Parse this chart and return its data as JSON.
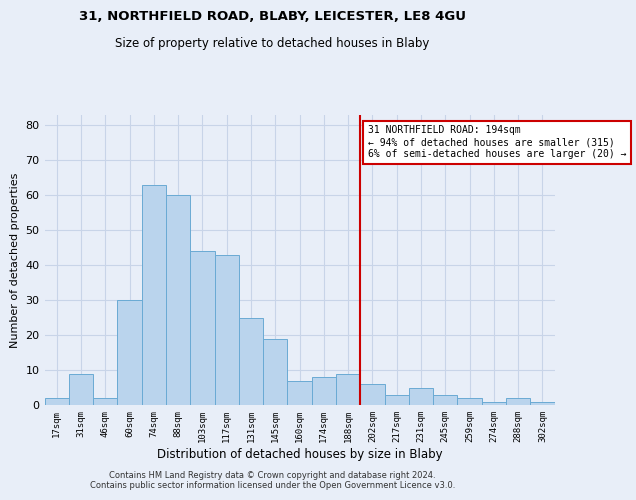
{
  "title1": "31, NORTHFIELD ROAD, BLABY, LEICESTER, LE8 4GU",
  "title2": "Size of property relative to detached houses in Blaby",
  "xlabel": "Distribution of detached houses by size in Blaby",
  "ylabel": "Number of detached properties",
  "footnote": "Contains HM Land Registry data © Crown copyright and database right 2024.\nContains public sector information licensed under the Open Government Licence v3.0.",
  "bin_labels": [
    "17sqm",
    "31sqm",
    "46sqm",
    "60sqm",
    "74sqm",
    "88sqm",
    "103sqm",
    "117sqm",
    "131sqm",
    "145sqm",
    "160sqm",
    "174sqm",
    "188sqm",
    "202sqm",
    "217sqm",
    "231sqm",
    "245sqm",
    "259sqm",
    "274sqm",
    "288sqm",
    "302sqm"
  ],
  "bar_values": [
    2,
    9,
    2,
    30,
    63,
    60,
    44,
    43,
    25,
    19,
    7,
    8,
    9,
    6,
    3,
    5,
    3,
    2,
    1,
    2,
    1
  ],
  "bar_color": "#bad4ed",
  "bar_edge_color": "#6aaad4",
  "grid_color": "#c8d4e8",
  "background_color": "#e8eef8",
  "vline_x": 12.5,
  "vline_color": "#cc0000",
  "annotation_text": "31 NORTHFIELD ROAD: 194sqm\n← 94% of detached houses are smaller (315)\n6% of semi-detached houses are larger (20) →",
  "annotation_box_color": "#cc0000",
  "ylim": [
    0,
    83
  ],
  "yticks": [
    0,
    10,
    20,
    30,
    40,
    50,
    60,
    70,
    80
  ]
}
